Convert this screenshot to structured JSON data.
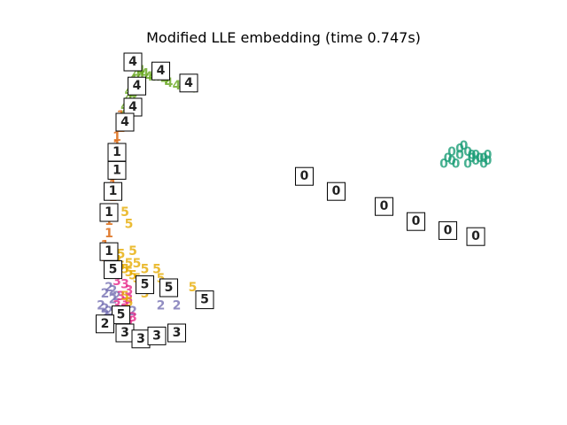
{
  "chart_data": {
    "type": "scatter",
    "title": "Modified LLE embedding (time 0.747s)",
    "xlabel": "",
    "ylabel": "",
    "axes_visible": false,
    "grid": false,
    "legend": "none",
    "marker": "digit glyphs; framed digit thumbnails at sparse points",
    "series": [
      {
        "label": "0",
        "color": "#1b9e77",
        "points": [
          [
            0.93,
            0.72
          ],
          [
            0.94,
            0.7
          ],
          [
            0.95,
            0.69
          ],
          [
            0.96,
            0.69
          ],
          [
            0.96,
            0.67
          ],
          [
            0.97,
            0.68
          ],
          [
            0.98,
            0.68
          ],
          [
            0.99,
            0.67
          ],
          [
            0.89,
            0.68
          ],
          [
            0.9,
            0.67
          ],
          [
            0.88,
            0.66
          ],
          [
            0.9,
            0.7
          ],
          [
            0.94,
            0.66
          ],
          [
            0.92,
            0.69
          ],
          [
            0.91,
            0.66
          ],
          [
            0.98,
            0.66
          ],
          [
            0.95,
            0.68
          ],
          [
            0.99,
            0.69
          ],
          [
            0.92,
            0.71
          ]
        ]
      },
      {
        "label": "2",
        "color": "#7570b3",
        "points": [
          [
            0.03,
            0.18
          ],
          [
            0.04,
            0.17
          ],
          [
            0.03,
            0.16
          ],
          [
            0.02,
            0.19
          ],
          [
            0.05,
            0.21
          ],
          [
            0.06,
            0.22
          ],
          [
            0.05,
            0.24
          ],
          [
            0.04,
            0.25
          ],
          [
            0.03,
            0.23
          ],
          [
            0.17,
            0.19
          ],
          [
            0.21,
            0.19
          ],
          [
            0.1,
            0.17
          ]
        ]
      },
      {
        "label": "3",
        "color": "#e7298a",
        "points": [
          [
            0.06,
            0.16
          ],
          [
            0.07,
            0.17
          ],
          [
            0.08,
            0.18
          ],
          [
            0.08,
            0.2
          ],
          [
            0.07,
            0.22
          ],
          [
            0.09,
            0.24
          ],
          [
            0.08,
            0.26
          ],
          [
            0.06,
            0.27
          ],
          [
            0.07,
            0.15
          ],
          [
            0.09,
            0.14
          ],
          [
            0.1,
            0.15
          ],
          [
            0.06,
            0.19
          ],
          [
            0.09,
            0.21
          ]
        ]
      },
      {
        "label": "4",
        "color": "#66a61e",
        "points": [
          [
            0.1,
            1.0
          ],
          [
            0.11,
            0.98
          ],
          [
            0.11,
            0.96
          ],
          [
            0.1,
            0.94
          ],
          [
            0.1,
            0.92
          ],
          [
            0.09,
            0.9
          ],
          [
            0.09,
            0.88
          ],
          [
            0.12,
            0.97
          ],
          [
            0.12,
            0.95
          ],
          [
            0.13,
            0.96
          ],
          [
            0.14,
            0.95
          ],
          [
            0.15,
            0.95
          ],
          [
            0.16,
            0.95
          ],
          [
            0.18,
            0.94
          ],
          [
            0.19,
            0.93
          ],
          [
            0.21,
            0.92
          ],
          [
            0.25,
            0.91
          ],
          [
            0.08,
            0.85
          ],
          [
            0.08,
            0.83
          ],
          [
            0.09,
            0.86
          ],
          [
            0.1,
            0.89
          ],
          [
            0.11,
            0.93
          ]
        ]
      },
      {
        "label": "1",
        "color": "#d95f02",
        "points": [
          [
            0.07,
            0.82
          ],
          [
            0.07,
            0.8
          ],
          [
            0.07,
            0.78
          ],
          [
            0.06,
            0.75
          ],
          [
            0.06,
            0.72
          ],
          [
            0.06,
            0.69
          ],
          [
            0.06,
            0.66
          ],
          [
            0.05,
            0.62
          ],
          [
            0.05,
            0.59
          ],
          [
            0.05,
            0.55
          ],
          [
            0.05,
            0.51
          ],
          [
            0.04,
            0.47
          ],
          [
            0.04,
            0.43
          ],
          [
            0.03,
            0.39
          ],
          [
            0.03,
            0.35
          ],
          [
            0.04,
            0.31
          ]
        ]
      },
      {
        "label": "5",
        "color": "#e6ab02",
        "points": [
          [
            0.05,
            0.37
          ],
          [
            0.06,
            0.34
          ],
          [
            0.07,
            0.32
          ],
          [
            0.08,
            0.31
          ],
          [
            0.09,
            0.3
          ],
          [
            0.1,
            0.29
          ],
          [
            0.11,
            0.28
          ],
          [
            0.12,
            0.27
          ],
          [
            0.12,
            0.25
          ],
          [
            0.13,
            0.23
          ],
          [
            0.06,
            0.35
          ],
          [
            0.07,
            0.36
          ],
          [
            0.09,
            0.33
          ],
          [
            0.11,
            0.33
          ],
          [
            0.13,
            0.31
          ],
          [
            0.08,
            0.22
          ],
          [
            0.09,
            0.2
          ],
          [
            0.16,
            0.31
          ],
          [
            0.17,
            0.28
          ],
          [
            0.25,
            0.25
          ],
          [
            0.08,
            0.5
          ],
          [
            0.09,
            0.46
          ],
          [
            0.1,
            0.37
          ]
        ]
      }
    ],
    "thumbnails": [
      {
        "label": "4",
        "x": 0.1,
        "y": 1.0
      },
      {
        "label": "4",
        "x": 0.17,
        "y": 0.97
      },
      {
        "label": "4",
        "x": 0.24,
        "y": 0.93
      },
      {
        "label": "4",
        "x": 0.11,
        "y": 0.92
      },
      {
        "label": "4",
        "x": 0.1,
        "y": 0.85
      },
      {
        "label": "4",
        "x": 0.08,
        "y": 0.8
      },
      {
        "label": "1",
        "x": 0.06,
        "y": 0.7
      },
      {
        "label": "1",
        "x": 0.06,
        "y": 0.64
      },
      {
        "label": "1",
        "x": 0.05,
        "y": 0.57
      },
      {
        "label": "1",
        "x": 0.04,
        "y": 0.5
      },
      {
        "label": "1",
        "x": 0.04,
        "y": 0.37
      },
      {
        "label": "5",
        "x": 0.05,
        "y": 0.31
      },
      {
        "label": "5",
        "x": 0.13,
        "y": 0.26
      },
      {
        "label": "5",
        "x": 0.19,
        "y": 0.25
      },
      {
        "label": "5",
        "x": 0.28,
        "y": 0.21
      },
      {
        "label": "5",
        "x": 0.07,
        "y": 0.16
      },
      {
        "label": "2",
        "x": 0.03,
        "y": 0.13
      },
      {
        "label": "3",
        "x": 0.08,
        "y": 0.1
      },
      {
        "label": "3",
        "x": 0.12,
        "y": 0.08
      },
      {
        "label": "3",
        "x": 0.16,
        "y": 0.09
      },
      {
        "label": "3",
        "x": 0.21,
        "y": 0.1
      },
      {
        "label": "0",
        "x": 0.53,
        "y": 0.62
      },
      {
        "label": "0",
        "x": 0.61,
        "y": 0.57
      },
      {
        "label": "0",
        "x": 0.73,
        "y": 0.52
      },
      {
        "label": "0",
        "x": 0.81,
        "y": 0.47
      },
      {
        "label": "0",
        "x": 0.89,
        "y": 0.44
      },
      {
        "label": "0",
        "x": 0.96,
        "y": 0.42
      }
    ]
  }
}
